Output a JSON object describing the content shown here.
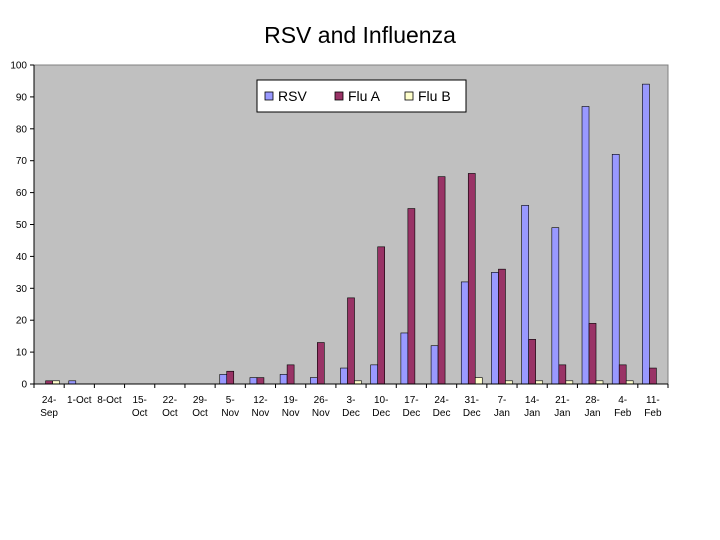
{
  "chart_data": {
    "type": "bar",
    "title": "RSV and Influenza",
    "xlabel": "",
    "ylabel": "",
    "ylim": [
      0,
      100
    ],
    "y_ticks": [
      0,
      10,
      20,
      30,
      40,
      50,
      60,
      70,
      80,
      90,
      100
    ],
    "grid": false,
    "legend_position": "top-center",
    "plot_background": "#c0c0c0",
    "categories": [
      [
        "24-",
        "Sep"
      ],
      [
        "1-Oct",
        ""
      ],
      [
        "8-Oct",
        ""
      ],
      [
        "15-",
        "Oct"
      ],
      [
        "22-",
        "Oct"
      ],
      [
        "29-",
        "Oct"
      ],
      [
        "5-",
        "Nov"
      ],
      [
        "12-",
        "Nov"
      ],
      [
        "19-",
        "Nov"
      ],
      [
        "26-",
        "Nov"
      ],
      [
        "3-",
        "Dec"
      ],
      [
        "10-",
        "Dec"
      ],
      [
        "17-",
        "Dec"
      ],
      [
        "24-",
        "Dec"
      ],
      [
        "31-",
        "Dec"
      ],
      [
        "7-",
        "Jan"
      ],
      [
        "14-",
        "Jan"
      ],
      [
        "21-",
        "Jan"
      ],
      [
        "28-",
        "Jan"
      ],
      [
        "4-",
        "Feb"
      ],
      [
        "11-",
        "Feb"
      ]
    ],
    "series": [
      {
        "name": "RSV",
        "color": "#9999ff",
        "values": [
          0,
          1,
          0,
          0,
          0,
          0,
          3,
          2,
          3,
          2,
          5,
          6,
          16,
          12,
          32,
          35,
          56,
          49,
          87,
          72,
          94
        ]
      },
      {
        "name": "Flu A",
        "color": "#993366",
        "values": [
          1,
          0,
          0,
          0,
          0,
          0,
          4,
          2,
          6,
          13,
          27,
          43,
          55,
          65,
          66,
          36,
          14,
          6,
          19,
          6,
          5
        ]
      },
      {
        "name": "Flu B",
        "color": "#ffffcc",
        "values": [
          1,
          0,
          0,
          0,
          0,
          0,
          0,
          0,
          0,
          0,
          1,
          0,
          0,
          0,
          2,
          1,
          1,
          1,
          1,
          1,
          0
        ]
      }
    ]
  }
}
